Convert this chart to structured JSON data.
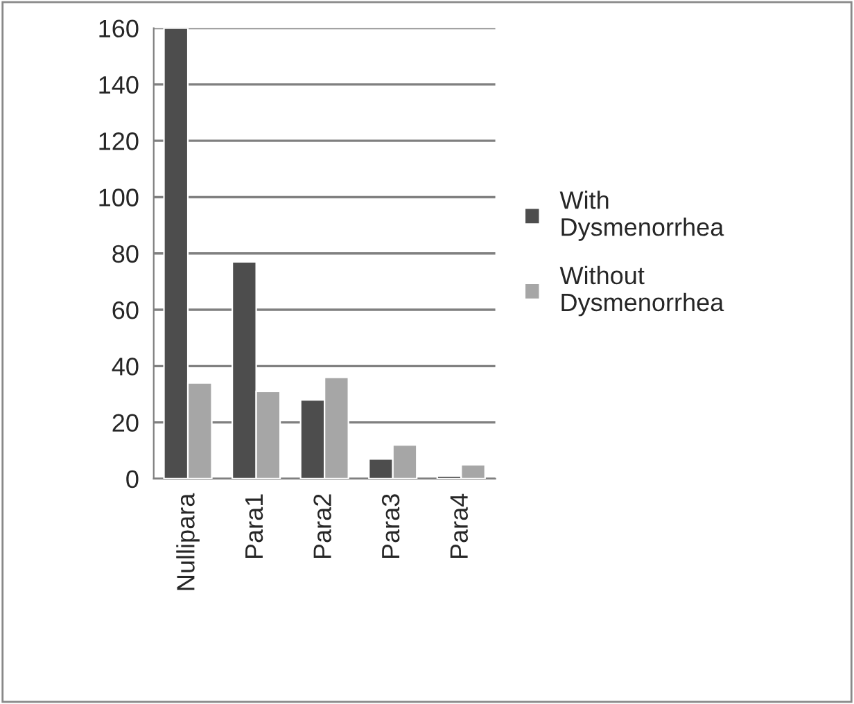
{
  "chart_data": {
    "type": "bar",
    "categories": [
      "Nullipara",
      "Para1",
      "Para2",
      "Para3",
      "Para4"
    ],
    "series": [
      {
        "name": "With Dysmenorrhea",
        "color": "#4d4d4d",
        "values": [
          160,
          77,
          28,
          7,
          1
        ]
      },
      {
        "name": "Without Dysmenorrhea",
        "color": "#a6a6a6",
        "values": [
          34,
          31,
          36,
          12,
          5
        ]
      }
    ],
    "ylim": [
      0,
      160
    ],
    "yticks": [
      0,
      20,
      40,
      60,
      80,
      100,
      120,
      140,
      160
    ],
    "grid": "y",
    "legend": "right"
  }
}
